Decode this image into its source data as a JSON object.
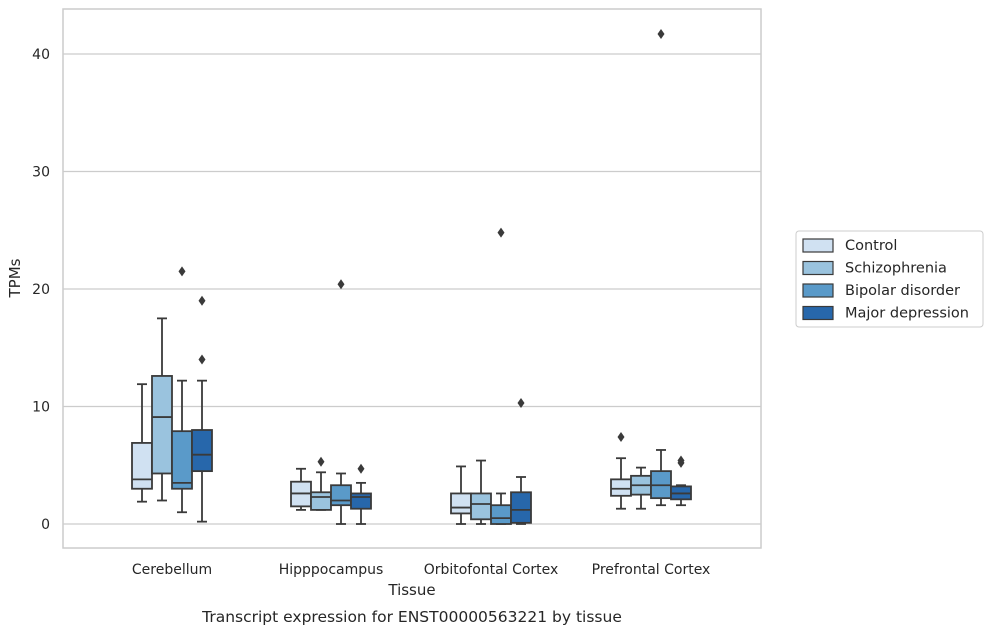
{
  "chart_data": {
    "type": "box",
    "title": "Transcript expression for ENST00000563221 by tissue",
    "xlabel": "Tissue",
    "ylabel": "TPMs",
    "ylim": [
      -2,
      44
    ],
    "yticks": [
      0,
      10,
      20,
      30,
      40
    ],
    "grid": true,
    "legend_position": "right",
    "categories": [
      "Cerebellum",
      "Hipppocampus",
      "Orbitofontal Cortex",
      "Prefrontal Cortex"
    ],
    "series": [
      {
        "name": "Control",
        "color": "#d0e1f2",
        "boxes": [
          {
            "whislo": 1.9,
            "q1": 3.0,
            "med": 3.8,
            "q3": 6.9,
            "whishi": 11.9,
            "fliers": []
          },
          {
            "whislo": 1.2,
            "q1": 1.5,
            "med": 2.6,
            "q3": 3.6,
            "whishi": 4.7,
            "fliers": []
          },
          {
            "whislo": 0.0,
            "q1": 0.9,
            "med": 1.4,
            "q3": 2.6,
            "whishi": 4.9,
            "fliers": []
          },
          {
            "whislo": 1.3,
            "q1": 2.4,
            "med": 3.0,
            "q3": 3.8,
            "whishi": 5.6,
            "fliers": [
              7.4
            ]
          }
        ]
      },
      {
        "name": "Schizophrenia",
        "color": "#9ac3de",
        "boxes": [
          {
            "whislo": 2.0,
            "q1": 4.3,
            "med": 9.1,
            "q3": 12.6,
            "whishi": 17.5,
            "fliers": []
          },
          {
            "whislo": 1.2,
            "q1": 1.2,
            "med": 2.3,
            "q3": 2.7,
            "whishi": 4.4,
            "fliers": [
              5.3
            ]
          },
          {
            "whislo": 0.0,
            "q1": 0.4,
            "med": 1.7,
            "q3": 2.6,
            "whishi": 5.4,
            "fliers": []
          },
          {
            "whislo": 1.3,
            "q1": 2.5,
            "med": 3.3,
            "q3": 4.1,
            "whishi": 4.8,
            "fliers": []
          }
        ]
      },
      {
        "name": "Bipolar disorder",
        "color": "#5a9ac9",
        "boxes": [
          {
            "whislo": 1.0,
            "q1": 3.0,
            "med": 3.5,
            "q3": 7.9,
            "whishi": 12.2,
            "fliers": [
              21.5
            ]
          },
          {
            "whislo": 0.0,
            "q1": 1.6,
            "med": 2.0,
            "q3": 3.3,
            "whishi": 4.3,
            "fliers": [
              20.4
            ]
          },
          {
            "whislo": 0.0,
            "q1": 0.0,
            "med": 0.5,
            "q3": 1.6,
            "whishi": 2.6,
            "fliers": [
              24.8
            ]
          },
          {
            "whislo": 1.6,
            "q1": 2.2,
            "med": 3.3,
            "q3": 4.5,
            "whishi": 6.3,
            "fliers": [
              41.7
            ]
          }
        ]
      },
      {
        "name": "Major depression",
        "color": "#2767ab",
        "boxes": [
          {
            "whislo": 0.2,
            "q1": 4.5,
            "med": 5.9,
            "q3": 8.0,
            "whishi": 12.2,
            "fliers": [
              19.0,
              14.0
            ]
          },
          {
            "whislo": 0.0,
            "q1": 1.3,
            "med": 2.3,
            "q3": 2.6,
            "whishi": 3.5,
            "fliers": [
              4.7
            ]
          },
          {
            "whislo": 0.0,
            "q1": 0.1,
            "med": 1.2,
            "q3": 2.7,
            "whishi": 4.0,
            "fliers": [
              10.3
            ]
          },
          {
            "whislo": 1.6,
            "q1": 2.1,
            "med": 2.6,
            "q3": 3.2,
            "whishi": 3.3,
            "fliers": [
              5.2,
              5.4
            ]
          }
        ]
      }
    ]
  }
}
